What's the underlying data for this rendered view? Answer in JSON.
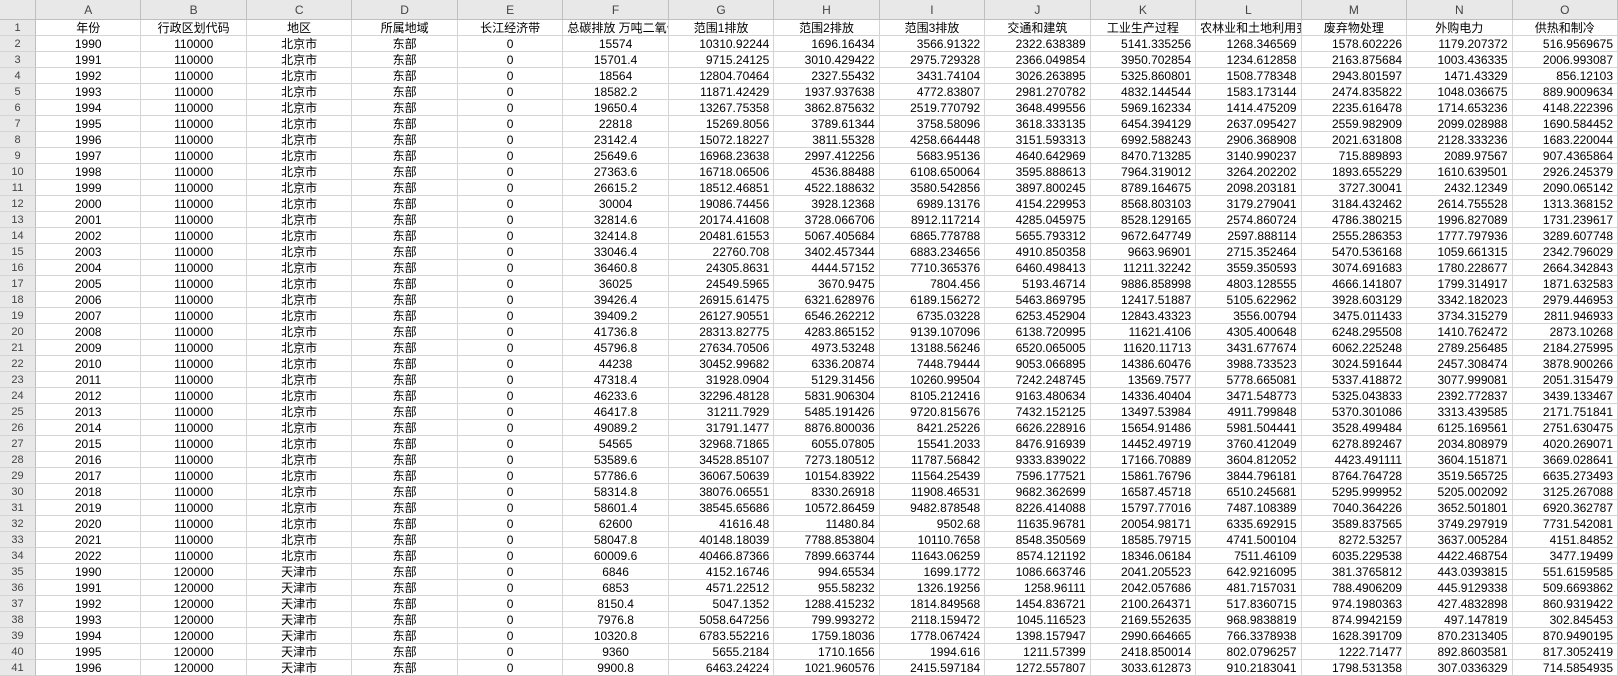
{
  "columns_letters": [
    "A",
    "B",
    "C",
    "D",
    "E",
    "F",
    "G",
    "H",
    "I",
    "J",
    "K",
    "L",
    "M",
    "N",
    "O"
  ],
  "headers": [
    "年份",
    "行政区划代码",
    "地区",
    "所属地域",
    "长江经济带",
    "总碳排放 万吨二氧化碳",
    "范围1排放",
    "范围2排放",
    "范围3排放",
    "交通和建筑",
    "工业生产过程",
    "农林业和土地利用变化",
    "废弃物处理",
    "外购电力",
    "供热和制冷"
  ],
  "rows": [
    [
      "1990",
      "110000",
      "北京市",
      "东部",
      "0",
      "15574",
      "10310.92244",
      "1696.16434",
      "3566.91322",
      "2322.638389",
      "5141.335256",
      "1268.346569",
      "1578.602226",
      "1179.207372",
      "516.9569675"
    ],
    [
      "1991",
      "110000",
      "北京市",
      "东部",
      "0",
      "15701.4",
      "9715.24125",
      "3010.429422",
      "2975.729328",
      "2366.049854",
      "3950.702854",
      "1234.612858",
      "2163.875684",
      "1003.436335",
      "2006.993087"
    ],
    [
      "1992",
      "110000",
      "北京市",
      "东部",
      "0",
      "18564",
      "12804.70464",
      "2327.55432",
      "3431.74104",
      "3026.263895",
      "5325.860801",
      "1508.778348",
      "2943.801597",
      "1471.43329",
      "856.12103"
    ],
    [
      "1993",
      "110000",
      "北京市",
      "东部",
      "0",
      "18582.2",
      "11871.42429",
      "1937.937638",
      "4772.83807",
      "2981.270782",
      "4832.144544",
      "1583.173144",
      "2474.835822",
      "1048.036675",
      "889.9009634"
    ],
    [
      "1994",
      "110000",
      "北京市",
      "东部",
      "0",
      "19650.4",
      "13267.75358",
      "3862.875632",
      "2519.770792",
      "3648.499556",
      "5969.162334",
      "1414.475209",
      "2235.616478",
      "1714.653236",
      "4148.222396"
    ],
    [
      "1995",
      "110000",
      "北京市",
      "东部",
      "0",
      "22818",
      "15269.8056",
      "3789.61344",
      "3758.58096",
      "3618.333135",
      "6454.394129",
      "2637.095427",
      "2559.982909",
      "2099.028988",
      "1690.584452"
    ],
    [
      "1996",
      "110000",
      "北京市",
      "东部",
      "0",
      "23142.4",
      "15072.18227",
      "3811.55328",
      "4258.664448",
      "3151.593313",
      "6992.588243",
      "2906.368908",
      "2021.631808",
      "2128.333236",
      "1683.220044"
    ],
    [
      "1997",
      "110000",
      "北京市",
      "东部",
      "0",
      "25649.6",
      "16968.23638",
      "2997.412256",
      "5683.95136",
      "4640.642969",
      "8470.713285",
      "3140.990237",
      "715.889893",
      "2089.97567",
      "907.4365864"
    ],
    [
      "1998",
      "110000",
      "北京市",
      "东部",
      "0",
      "27363.6",
      "16718.06506",
      "4536.88488",
      "6108.650064",
      "3595.888613",
      "7964.319012",
      "3264.202202",
      "1893.655229",
      "1610.639501",
      "2926.245379"
    ],
    [
      "1999",
      "110000",
      "北京市",
      "东部",
      "0",
      "26615.2",
      "18512.46851",
      "4522.188632",
      "3580.542856",
      "3897.800245",
      "8789.164675",
      "2098.203181",
      "3727.30041",
      "2432.12349",
      "2090.065142"
    ],
    [
      "2000",
      "110000",
      "北京市",
      "东部",
      "0",
      "30004",
      "19086.74456",
      "3928.12368",
      "6989.13176",
      "4154.229953",
      "8568.803103",
      "3179.279041",
      "3184.432462",
      "2614.755528",
      "1313.368152"
    ],
    [
      "2001",
      "110000",
      "北京市",
      "东部",
      "0",
      "32814.6",
      "20174.41608",
      "3728.066706",
      "8912.117214",
      "4285.045975",
      "8528.129165",
      "2574.860724",
      "4786.380215",
      "1996.827089",
      "1731.239617"
    ],
    [
      "2002",
      "110000",
      "北京市",
      "东部",
      "0",
      "32414.8",
      "20481.61553",
      "5067.405684",
      "6865.778788",
      "5655.793312",
      "9672.647749",
      "2597.888114",
      "2555.286353",
      "1777.797936",
      "3289.607748"
    ],
    [
      "2003",
      "110000",
      "北京市",
      "东部",
      "0",
      "33046.4",
      "22760.708",
      "3402.457344",
      "6883.234656",
      "4910.850358",
      "9663.96901",
      "2715.352464",
      "5470.536168",
      "1059.661315",
      "2342.796029"
    ],
    [
      "2004",
      "110000",
      "北京市",
      "东部",
      "0",
      "36460.8",
      "24305.8631",
      "4444.57152",
      "7710.365376",
      "6460.498413",
      "11211.32242",
      "3559.350593",
      "3074.691683",
      "1780.228677",
      "2664.342843"
    ],
    [
      "2005",
      "110000",
      "北京市",
      "东部",
      "0",
      "36025",
      "24549.5965",
      "3670.9475",
      "7804.456",
      "5193.46714",
      "9886.858998",
      "4803.128555",
      "4666.141807",
      "1799.314917",
      "1871.632583"
    ],
    [
      "2006",
      "110000",
      "北京市",
      "东部",
      "0",
      "39426.4",
      "26915.61475",
      "6321.628976",
      "6189.156272",
      "5463.869795",
      "12417.51887",
      "5105.622962",
      "3928.603129",
      "3342.182023",
      "2979.446953"
    ],
    [
      "2007",
      "110000",
      "北京市",
      "东部",
      "0",
      "39409.2",
      "26127.90551",
      "6546.262212",
      "6735.03228",
      "6253.452904",
      "12843.43323",
      "3556.00794",
      "3475.011433",
      "3734.315279",
      "2811.946933"
    ],
    [
      "2008",
      "110000",
      "北京市",
      "东部",
      "0",
      "41736.8",
      "28313.82775",
      "4283.865152",
      "9139.107096",
      "6138.720995",
      "11621.4106",
      "4305.400648",
      "6248.295508",
      "1410.762472",
      "2873.10268"
    ],
    [
      "2009",
      "110000",
      "北京市",
      "东部",
      "0",
      "45796.8",
      "27634.70506",
      "4973.53248",
      "13188.56246",
      "6520.065005",
      "11620.11713",
      "3431.677674",
      "6062.225248",
      "2789.256485",
      "2184.275995"
    ],
    [
      "2010",
      "110000",
      "北京市",
      "东部",
      "0",
      "44238",
      "30452.99682",
      "6336.20874",
      "7448.79444",
      "9053.066895",
      "14386.60476",
      "3988.733523",
      "3024.591644",
      "2457.308474",
      "3878.900266"
    ],
    [
      "2011",
      "110000",
      "北京市",
      "东部",
      "0",
      "47318.4",
      "31928.0904",
      "5129.31456",
      "10260.99504",
      "7242.248745",
      "13569.7577",
      "5778.665081",
      "5337.418872",
      "3077.999081",
      "2051.315479"
    ],
    [
      "2012",
      "110000",
      "北京市",
      "东部",
      "0",
      "46233.6",
      "32296.48128",
      "5831.906304",
      "8105.212416",
      "9163.480634",
      "14336.40404",
      "3471.548773",
      "5325.043833",
      "2392.772837",
      "3439.133467"
    ],
    [
      "2013",
      "110000",
      "北京市",
      "东部",
      "0",
      "46417.8",
      "31211.7929",
      "5485.191426",
      "9720.815676",
      "7432.152125",
      "13497.53984",
      "4911.799848",
      "5370.301086",
      "3313.439585",
      "2171.751841"
    ],
    [
      "2014",
      "110000",
      "北京市",
      "东部",
      "0",
      "49089.2",
      "31791.1477",
      "8876.800036",
      "8421.25226",
      "6626.228916",
      "15654.91486",
      "5981.504441",
      "3528.499484",
      "6125.169561",
      "2751.630475"
    ],
    [
      "2015",
      "110000",
      "北京市",
      "东部",
      "0",
      "54565",
      "32968.71865",
      "6055.07805",
      "15541.2033",
      "8476.916939",
      "14452.49719",
      "3760.412049",
      "6278.892467",
      "2034.808979",
      "4020.269071"
    ],
    [
      "2016",
      "110000",
      "北京市",
      "东部",
      "0",
      "53589.6",
      "34528.85107",
      "7273.180512",
      "11787.56842",
      "9333.839022",
      "17166.70889",
      "3604.812052",
      "4423.491111",
      "3604.151871",
      "3669.028641"
    ],
    [
      "2017",
      "110000",
      "北京市",
      "东部",
      "0",
      "57786.6",
      "36067.50639",
      "10154.83922",
      "11564.25439",
      "7596.177521",
      "15861.76796",
      "3844.796181",
      "8764.764728",
      "3519.565725",
      "6635.273493"
    ],
    [
      "2018",
      "110000",
      "北京市",
      "东部",
      "0",
      "58314.8",
      "38076.06551",
      "8330.26918",
      "11908.46531",
      "9682.362699",
      "16587.45718",
      "6510.245681",
      "5295.999952",
      "5205.002092",
      "3125.267088"
    ],
    [
      "2019",
      "110000",
      "北京市",
      "东部",
      "0",
      "58601.4",
      "38545.65686",
      "10572.86459",
      "9482.878548",
      "8226.414088",
      "15797.77016",
      "7487.108389",
      "7040.364226",
      "3652.501801",
      "6920.362787"
    ],
    [
      "2020",
      "110000",
      "北京市",
      "东部",
      "0",
      "62600",
      "41616.48",
      "11480.84",
      "9502.68",
      "11635.96781",
      "20054.98171",
      "6335.692915",
      "3589.837565",
      "3749.297919",
      "7731.542081"
    ],
    [
      "2021",
      "110000",
      "北京市",
      "东部",
      "0",
      "58047.8",
      "40148.18039",
      "7788.853804",
      "10110.7658",
      "8548.350569",
      "18585.79715",
      "4741.500104",
      "8272.53257",
      "3637.005284",
      "4151.84852"
    ],
    [
      "2022",
      "110000",
      "北京市",
      "东部",
      "0",
      "60009.6",
      "40466.87366",
      "7899.663744",
      "11643.06259",
      "8574.121192",
      "18346.06184",
      "7511.46109",
      "6035.229538",
      "4422.468754",
      "3477.19499"
    ],
    [
      "1990",
      "120000",
      "天津市",
      "东部",
      "0",
      "6846",
      "4152.16746",
      "994.65534",
      "1699.1772",
      "1086.663746",
      "2041.205523",
      "642.9216095",
      "381.3765812",
      "443.0393815",
      "551.6159585"
    ],
    [
      "1991",
      "120000",
      "天津市",
      "东部",
      "0",
      "6853",
      "4571.22512",
      "955.58232",
      "1326.19256",
      "1258.96111",
      "2042.057686",
      "481.7157031",
      "788.4906209",
      "445.9129338",
      "509.6693862"
    ],
    [
      "1992",
      "120000",
      "天津市",
      "东部",
      "0",
      "8150.4",
      "5047.1352",
      "1288.415232",
      "1814.849568",
      "1454.836721",
      "2100.264371",
      "517.8360715",
      "974.1980363",
      "427.4832898",
      "860.9319422"
    ],
    [
      "1993",
      "120000",
      "天津市",
      "东部",
      "0",
      "7976.8",
      "5058.647256",
      "799.993272",
      "2118.159472",
      "1045.116523",
      "2169.552635",
      "968.9838819",
      "874.9942159",
      "497.147819",
      "302.845453"
    ],
    [
      "1994",
      "120000",
      "天津市",
      "东部",
      "0",
      "10320.8",
      "6783.552216",
      "1759.18036",
      "1778.067424",
      "1398.157947",
      "2990.664665",
      "766.3378938",
      "1628.391709",
      "870.2313405",
      "870.9490195"
    ],
    [
      "1995",
      "120000",
      "天津市",
      "东部",
      "0",
      "9360",
      "5655.2184",
      "1710.1656",
      "1994.616",
      "1211.57399",
      "2418.850014",
      "802.0796257",
      "1222.71477",
      "892.8603581",
      "817.3052419"
    ],
    [
      "1996",
      "120000",
      "天津市",
      "东部",
      "0",
      "9900.8",
      "6463.24224",
      "1021.960576",
      "2415.597184",
      "1272.557807",
      "3033.612873",
      "910.2183041",
      "1798.531358",
      "307.0336329",
      "714.5854935"
    ]
  ]
}
